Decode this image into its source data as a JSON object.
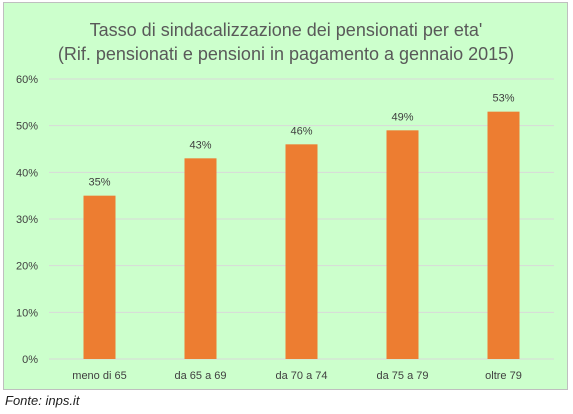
{
  "chart_data": {
    "type": "bar",
    "title_lines": [
      "Tasso di sindacalizzazione dei pensionati per eta'",
      "(Rif. pensionati e pensioni in pagamento a gennaio 2015)"
    ],
    "categories": [
      "meno di 65",
      "da 65 a 69",
      "da 70 a 74",
      "da 75 a 79",
      "oltre 79"
    ],
    "values": [
      35,
      43,
      46,
      49,
      53
    ],
    "data_labels": [
      "35%",
      "43%",
      "46%",
      "49%",
      "53%"
    ],
    "ylim": [
      0,
      60
    ],
    "yticks": [
      0,
      10,
      20,
      30,
      40,
      50,
      60
    ],
    "ytick_labels": [
      "0%",
      "10%",
      "20%",
      "30%",
      "40%",
      "50%",
      "60%"
    ],
    "grid": true,
    "legend": "none",
    "bar_color": "#ed7d31",
    "background_color": "#ccffcc",
    "grid_color": "#d9d9d9"
  },
  "source": "Fonte: inps.it"
}
